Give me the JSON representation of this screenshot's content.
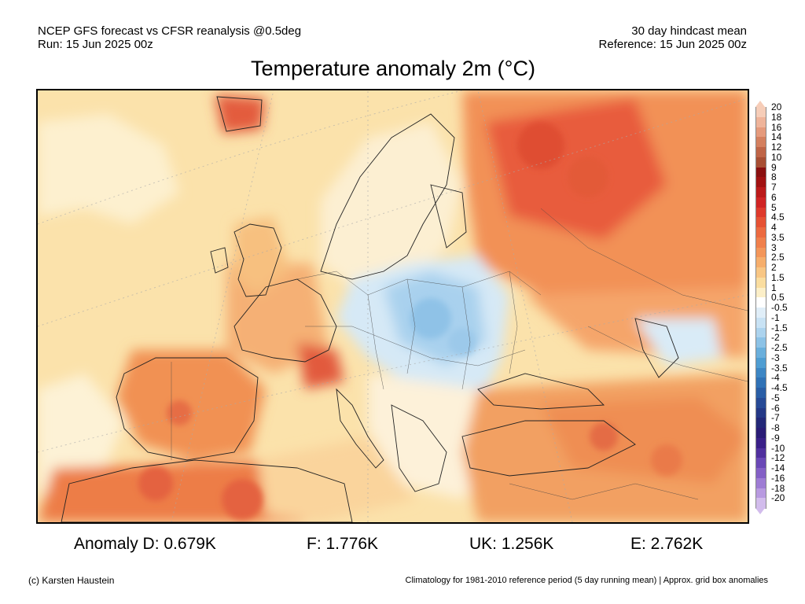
{
  "header": {
    "line1_left": "NCEP GFS forecast vs CFSR reanalysis @0.5deg",
    "line2_left": "Run: 15 Jun 2025 00z",
    "line1_right": "30 day hindcast mean",
    "line2_right": "Reference: 15 Jun 2025 00z"
  },
  "title": "Temperature anomaly 2m (°C)",
  "colorbar": {
    "labels": [
      "20",
      "18",
      "16",
      "14",
      "12",
      "10",
      "9",
      "8",
      "7",
      "6",
      "5",
      "4.5",
      "4",
      "3.5",
      "3",
      "2.5",
      "2",
      "1.5",
      "1",
      "0.5",
      "-0.5",
      "-1",
      "-1.5",
      "-2",
      "-2.5",
      "-3",
      "-3.5",
      "-4",
      "-4.5",
      "-5",
      "-6",
      "-7",
      "-8",
      "-9",
      "-10",
      "-12",
      "-14",
      "-16",
      "-18",
      "-20"
    ],
    "colors": [
      "#f6cdb8",
      "#efb49a",
      "#e59a7c",
      "#d4805f",
      "#bf6547",
      "#a84f34",
      "#8a1010",
      "#a11212",
      "#bb1a1a",
      "#d02424",
      "#de3a2c",
      "#e65234",
      "#ec6a40",
      "#f0804c",
      "#f3965a",
      "#f6ae6c",
      "#f8c684",
      "#fadd9f",
      "#fcefc8",
      "#ffffff",
      "#e0eef8",
      "#c8e2f4",
      "#acd3ee",
      "#8cc2e6",
      "#6aafdc",
      "#4f9dd2",
      "#3d86c4",
      "#3072b6",
      "#2a5ea6",
      "#274a96",
      "#243886",
      "#232878",
      "#2a1c76",
      "#3a2088",
      "#50309e",
      "#6a48b6",
      "#8460c6",
      "#9e7cd4",
      "#b89ae0",
      "#d2bcec"
    ]
  },
  "anomalies": {
    "D": "Anomaly D: 0.679K",
    "F": "F: 1.776K",
    "UK": "UK: 1.256K",
    "E": "E: 2.762K"
  },
  "footer": {
    "left": "(c) Karsten Haustein",
    "right": "Climatology for 1981-2010 reference period (5 day running mean) | Approx. grid box anomalies"
  }
}
